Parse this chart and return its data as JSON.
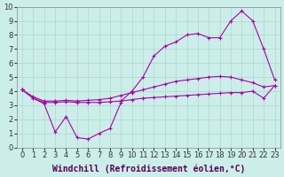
{
  "xlabel": "Windchill (Refroidissement éolien,°C)",
  "xlim": [
    -0.5,
    23.5
  ],
  "ylim": [
    0,
    10
  ],
  "xticks": [
    0,
    1,
    2,
    3,
    4,
    5,
    6,
    7,
    8,
    9,
    10,
    11,
    12,
    13,
    14,
    15,
    16,
    17,
    18,
    19,
    20,
    21,
    22,
    23
  ],
  "yticks": [
    0,
    1,
    2,
    3,
    4,
    5,
    6,
    7,
    8,
    9,
    10
  ],
  "bg_color": "#cceee8",
  "grid_color": "#aad8d0",
  "line_color": "#aa00aa",
  "line1_y": [
    4.1,
    3.5,
    3.1,
    1.1,
    2.2,
    0.7,
    0.6,
    1.0,
    1.35,
    3.2
  ],
  "line2_y": [
    4.1,
    3.5,
    3.2,
    3.2,
    3.25,
    3.2,
    3.2,
    3.2,
    3.25,
    3.3,
    3.4,
    3.5,
    3.55,
    3.6,
    3.65,
    3.7,
    3.75,
    3.8,
    3.85,
    3.9,
    3.9,
    4.0,
    3.5,
    4.4
  ],
  "line3_y": [
    4.1,
    3.6,
    3.3,
    3.3,
    3.35,
    3.3,
    3.35,
    3.4,
    3.5,
    3.7,
    3.9,
    4.1,
    4.3,
    4.5,
    4.7,
    4.8,
    4.9,
    5.0,
    5.05,
    5.0,
    4.8,
    4.6,
    4.3,
    4.4
  ],
  "line4_y": [
    4.1,
    null,
    null,
    null,
    null,
    null,
    null,
    null,
    null,
    3.3,
    4.0,
    5.0,
    6.5,
    7.2,
    7.5,
    8.0,
    8.1,
    7.8,
    7.8,
    9.0,
    9.7,
    9.0,
    7.0,
    4.8
  ],
  "tick_fontsize": 6,
  "label_fontsize": 7
}
